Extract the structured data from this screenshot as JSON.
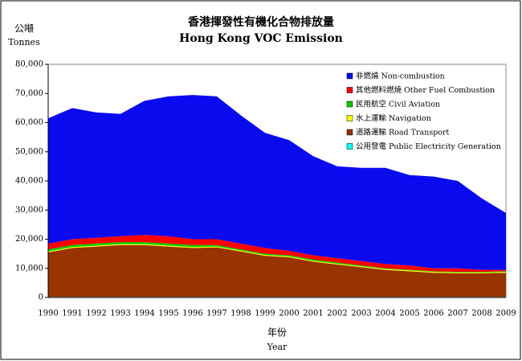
{
  "chart_data": {
    "type": "area",
    "stacked": true,
    "title": "香港揮發性有機化合物排放量",
    "subtitle": "Hong Kong VOC Emission",
    "y_label": "公噸",
    "y_label_en": "Tonnes",
    "x_label": "年份",
    "x_label_en": "Year",
    "categories": [
      "1990",
      "1991",
      "1992",
      "1993",
      "1994",
      "1995",
      "1996",
      "1997",
      "1998",
      "1999",
      "2000",
      "2001",
      "2002",
      "2003",
      "2004",
      "2005",
      "2006",
      "2007",
      "2008",
      "2009"
    ],
    "ylim": [
      0,
      80000
    ],
    "yticks": [
      0,
      {
        "value": 10000,
        "label": "10,000"
      },
      {
        "value": 20000,
        "label": "20,000"
      },
      {
        "value": 30000,
        "label": "30,000"
      },
      {
        "value": 40000,
        "label": "40,000"
      },
      {
        "value": 50000,
        "label": "50,000"
      },
      {
        "value": 60000,
        "label": "60,000"
      },
      {
        "value": 70000,
        "label": "70,000"
      },
      {
        "value": 80000,
        "label": "80,000"
      }
    ],
    "series": [
      {
        "name": "非燃燒 Non-combustion",
        "color": "#0a0aef",
        "values": [
          43000,
          45000,
          43000,
          42000,
          46000,
          48000,
          49500,
          49000,
          44000,
          39500,
          38000,
          34000,
          31500,
          32000,
          33000,
          31000,
          31500,
          30000,
          24500,
          19500
        ]
      },
      {
        "name": "其他燃料燃燒 Other Fuel Combustion",
        "color": "#ff0000",
        "values": [
          2000,
          2000,
          2000,
          2000,
          2500,
          2500,
          2000,
          2000,
          2000,
          2000,
          1500,
          1500,
          1500,
          1500,
          1500,
          1500,
          1000,
          1200,
          700,
          500
        ]
      },
      {
        "name": "民用航空 Civil Aviation",
        "color": "#00cc00",
        "values": [
          700,
          700,
          700,
          700,
          700,
          700,
          700,
          500,
          400,
          400,
          400,
          400,
          400,
          300,
          200,
          200,
          200,
          200,
          200,
          200
        ]
      },
      {
        "name": "水上運輸 Navigation",
        "color": "#ffff00",
        "values": [
          300,
          300,
          300,
          300,
          300,
          300,
          300,
          300,
          300,
          300,
          300,
          300,
          300,
          300,
          300,
          300,
          300,
          300,
          300,
          300
        ]
      },
      {
        "name": "道路運輸 Road Transport",
        "color": "#993300",
        "values": [
          15300,
          16800,
          17300,
          17800,
          17800,
          17300,
          16800,
          17000,
          15600,
          14100,
          13600,
          12100,
          11100,
          10200,
          9300,
          8800,
          8300,
          8100,
          8100,
          8300
        ]
      },
      {
        "name": "公用發電 Public Electricity Generation",
        "color": "#00ffff",
        "values": [
          200,
          200,
          200,
          200,
          200,
          200,
          200,
          200,
          200,
          200,
          200,
          200,
          200,
          200,
          200,
          200,
          200,
          200,
          200,
          200
        ]
      }
    ]
  }
}
